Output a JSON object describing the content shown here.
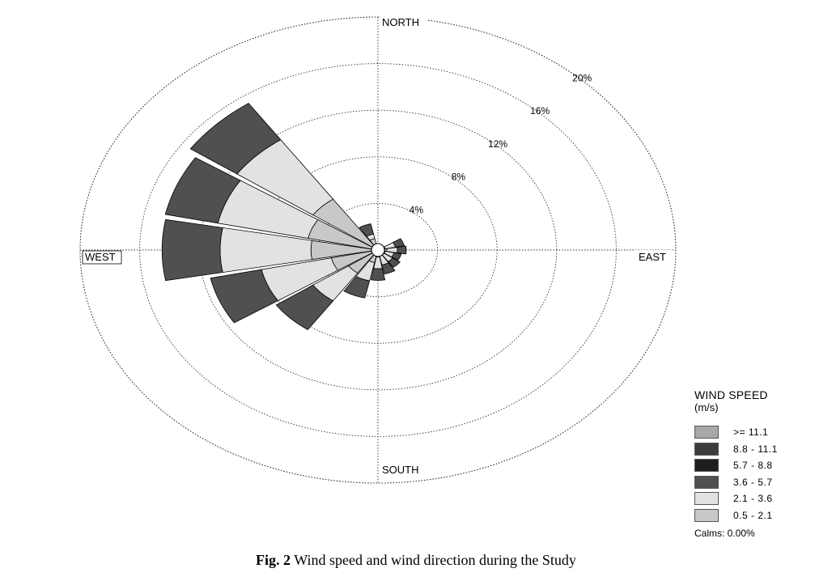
{
  "chart_data": {
    "type": "wind-rose",
    "direction_labels": {
      "north": "NORTH",
      "east": "EAST",
      "south": "SOUTH",
      "west": "WEST"
    },
    "ring_percentages": [
      4,
      8,
      12,
      16,
      20
    ],
    "ring_labels": [
      "4%",
      "8%",
      "12%",
      "16%",
      "20%"
    ],
    "speed_bins": [
      {
        "label": "0.5 -  2.1",
        "color": "#c8c8c8"
      },
      {
        "label": "2.1 -  3.6",
        "color": "#e2e2e2"
      },
      {
        "label": "3.6 -  5.7",
        "color": "#505050"
      },
      {
        "label": "5.7 -  8.8",
        "color": "#1e1e1e"
      },
      {
        "label": "8.8 - 11.1",
        "color": "#3c3c3c"
      },
      {
        "label": ">= 11.1",
        "color": "#a8a8a8"
      }
    ],
    "directions": [
      {
        "dir_deg": 0,
        "cumulative_pct": [
          0.0,
          0.0,
          0.0
        ]
      },
      {
        "dir_deg": 22.5,
        "cumulative_pct": [
          0.0,
          0.0,
          0.0
        ]
      },
      {
        "dir_deg": 45,
        "cumulative_pct": [
          0.0,
          0.0,
          0.0
        ]
      },
      {
        "dir_deg": 67.5,
        "cumulative_pct": [
          0.5,
          1.2,
          1.8
        ]
      },
      {
        "dir_deg": 90,
        "cumulative_pct": [
          0.6,
          1.3,
          1.9
        ]
      },
      {
        "dir_deg": 112.5,
        "cumulative_pct": [
          0.5,
          1.1,
          1.6
        ]
      },
      {
        "dir_deg": 135,
        "cumulative_pct": [
          0.5,
          1.2,
          1.8
        ]
      },
      {
        "dir_deg": 157.5,
        "cumulative_pct": [
          0.5,
          1.3,
          2.1
        ]
      },
      {
        "dir_deg": 180,
        "cumulative_pct": [
          0.6,
          1.6,
          2.6
        ]
      },
      {
        "dir_deg": 202.5,
        "cumulative_pct": [
          1.1,
          2.7,
          4.2
        ]
      },
      {
        "dir_deg": 225,
        "cumulative_pct": [
          2.4,
          5.3,
          8.3
        ]
      },
      {
        "dir_deg": 247.5,
        "cumulative_pct": [
          3.2,
          8.0,
          11.5
        ]
      },
      {
        "dir_deg": 270,
        "cumulative_pct": [
          4.5,
          10.6,
          14.5
        ]
      },
      {
        "dir_deg": 292.5,
        "cumulative_pct": [
          4.8,
          11.0,
          14.6
        ]
      },
      {
        "dir_deg": 315,
        "cumulative_pct": [
          5.3,
          11.5,
          15.3
        ]
      },
      {
        "dir_deg": 337.5,
        "cumulative_pct": [
          1.0,
          1.4,
          2.3
        ]
      }
    ]
  },
  "legend": {
    "title": "WIND SPEED",
    "unit": "(m/s)",
    "items": [
      {
        "label": ">= 11.1",
        "color": "#a8a8a8"
      },
      {
        "label": "8.8 - 11.1",
        "color": "#3c3c3c"
      },
      {
        "label": "5.7 -  8.8",
        "color": "#1e1e1e"
      },
      {
        "label": "3.6 -  5.7",
        "color": "#505050"
      },
      {
        "label": "2.1 -  3.6",
        "color": "#e2e2e2"
      },
      {
        "label": "0.5 -  2.1",
        "color": "#c8c8c8"
      }
    ],
    "calms": "Calms: 0.00%"
  },
  "caption": {
    "prefix": "Fig. 2",
    "text": " Wind speed and wind direction during the Study"
  }
}
